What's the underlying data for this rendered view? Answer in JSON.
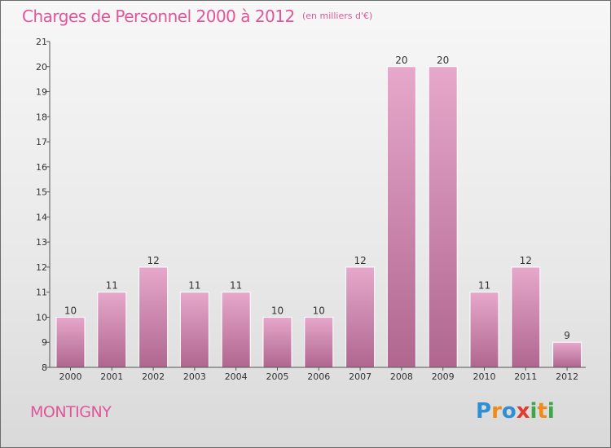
{
  "header": {
    "title": "Charges de Personnel 2000 à 2012",
    "subtitle": "(en milliers d'€)"
  },
  "footer": {
    "commune": "MONTIGNY",
    "logo_text": "Proxiti",
    "logo_letters": [
      {
        "char": "P",
        "color": "#2f8fd4"
      },
      {
        "char": "r",
        "color": "#f08a1a"
      },
      {
        "char": "o",
        "color": "#2f8fd4"
      },
      {
        "char": "x",
        "color": "#e23b2e"
      },
      {
        "char": "i",
        "color": "#3aa845"
      },
      {
        "char": "t",
        "color": "#f08a1a"
      },
      {
        "char": "i",
        "color": "#3aa845"
      }
    ]
  },
  "chart_data": {
    "type": "bar",
    "categories": [
      "2000",
      "2001",
      "2002",
      "2003",
      "2004",
      "2005",
      "2006",
      "2007",
      "2008",
      "2009",
      "2010",
      "2011",
      "2012"
    ],
    "values": [
      10,
      11,
      12,
      11,
      11,
      10,
      10,
      12,
      20,
      20,
      11,
      12,
      9
    ],
    "ylim": [
      8,
      21
    ],
    "yticks": [
      8,
      9,
      10,
      11,
      12,
      13,
      14,
      15,
      16,
      17,
      18,
      19,
      20,
      21
    ],
    "grid": false,
    "data_labels": true,
    "colors": {
      "bar_top": "#e6a8cb",
      "bar_bottom": "#b0668f",
      "bar_edge": "#ffffff",
      "axis": "#555555",
      "text": "#333333"
    }
  }
}
